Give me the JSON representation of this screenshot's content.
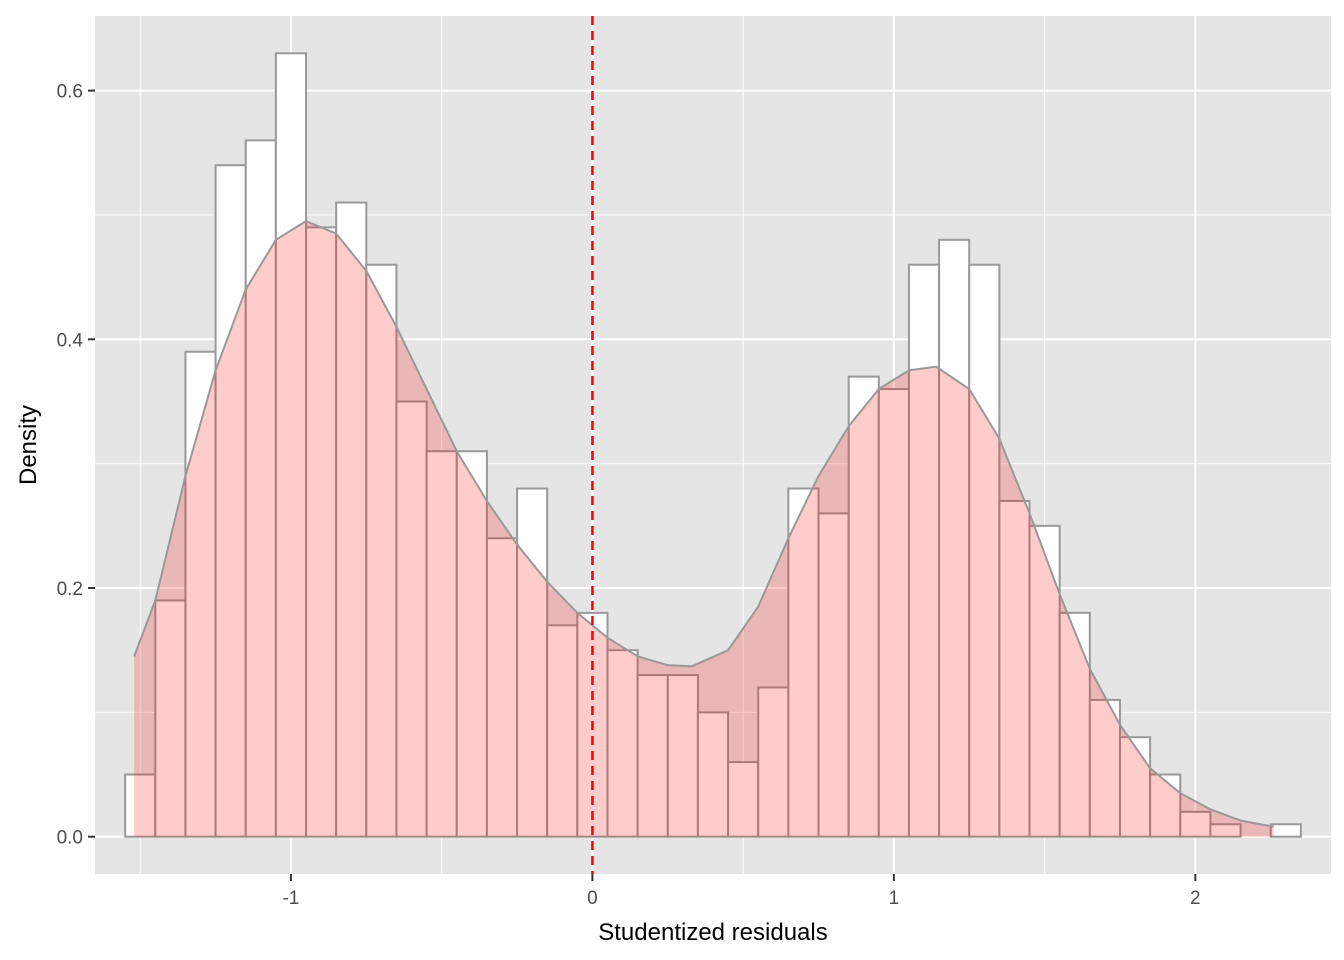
{
  "chart_data": {
    "type": "bar",
    "xlabel": "Studentized residuals",
    "ylabel": "Density",
    "xlim": [
      -1.65,
      2.45
    ],
    "ylim": [
      -0.03,
      0.66
    ],
    "x_ticks": [
      -1,
      0,
      1,
      2
    ],
    "x_tick_labels": [
      "-1",
      "0",
      "1",
      "2"
    ],
    "y_ticks": [
      0.0,
      0.2,
      0.4,
      0.6
    ],
    "y_tick_labels": [
      "0.0",
      "0.2",
      "0.4",
      "0.6"
    ],
    "grid": true,
    "histogram": {
      "bin_start": -1.55,
      "bin_width": 0.1,
      "values": [
        0.05,
        0.19,
        0.39,
        0.54,
        0.56,
        0.63,
        0.49,
        0.51,
        0.46,
        0.35,
        0.31,
        0.31,
        0.24,
        0.28,
        0.17,
        0.18,
        0.15,
        0.13,
        0.13,
        0.1,
        0.06,
        0.12,
        0.28,
        0.26,
        0.37,
        0.36,
        0.46,
        0.48,
        0.46,
        0.27,
        0.25,
        0.18,
        0.11,
        0.08,
        0.05,
        0.02,
        0.01,
        0.0,
        0.01
      ]
    },
    "density_curve": {
      "x": [
        -1.52,
        -1.45,
        -1.35,
        -1.25,
        -1.15,
        -1.05,
        -0.95,
        -0.85,
        -0.75,
        -0.65,
        -0.55,
        -0.45,
        -0.35,
        -0.25,
        -0.15,
        -0.05,
        0.05,
        0.15,
        0.25,
        0.33,
        0.45,
        0.55,
        0.65,
        0.75,
        0.85,
        0.95,
        1.05,
        1.14,
        1.25,
        1.35,
        1.45,
        1.55,
        1.65,
        1.75,
        1.85,
        1.95,
        2.05,
        2.15,
        2.26
      ],
      "y": [
        0.145,
        0.19,
        0.29,
        0.375,
        0.44,
        0.48,
        0.495,
        0.485,
        0.455,
        0.41,
        0.36,
        0.31,
        0.27,
        0.235,
        0.205,
        0.18,
        0.16,
        0.145,
        0.138,
        0.137,
        0.15,
        0.185,
        0.24,
        0.29,
        0.33,
        0.36,
        0.375,
        0.378,
        0.36,
        0.32,
        0.26,
        0.195,
        0.135,
        0.09,
        0.055,
        0.035,
        0.022,
        0.013,
        0.008
      ]
    },
    "reference_line": {
      "x": 0
    },
    "colors": {
      "panel": "#e5e5e5",
      "grid_major": "#ffffff",
      "bar_fill": "#ffffff",
      "bar_stroke": "#999999",
      "density_fill": "#ff0000",
      "density_stroke": "#999999",
      "reference_line": "#ff0000"
    }
  }
}
